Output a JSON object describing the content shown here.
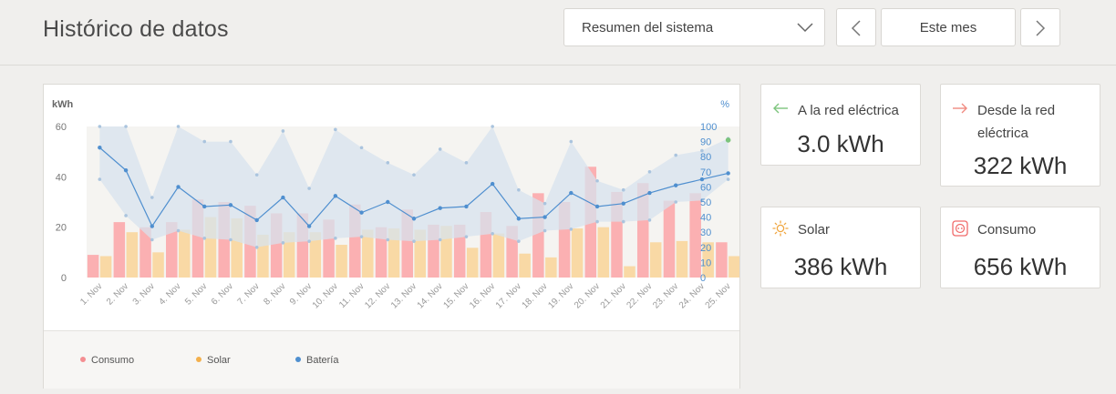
{
  "header": {
    "title": "Histórico de datos",
    "view_select": "Resumen del sistema",
    "period": "Este mes"
  },
  "stats": {
    "grid_export": {
      "label": "A la red eléctrica",
      "value": "3.0 kWh",
      "icon": "arrow-left-icon",
      "color": "#7cc47c"
    },
    "grid_import": {
      "label_line1": "Desde la red",
      "label_line2": "eléctrica",
      "value": "322 kWh",
      "icon": "arrow-right-icon",
      "color": "#f08a80"
    },
    "solar": {
      "label": "Solar",
      "value": "386 kWh",
      "icon": "sun-icon",
      "color": "#f0a640"
    },
    "consumption": {
      "label": "Consumo",
      "value": "656 kWh",
      "icon": "outlet-icon",
      "color": "#f06a6a"
    }
  },
  "legend": {
    "consumo": "Consumo",
    "solar": "Solar",
    "bateria": "Batería"
  },
  "colors": {
    "consumo": "#fbb0b2",
    "solar": "#f9d69c",
    "bateria": "#4f8fcf",
    "band": "#d7e3ee",
    "plot_bg": "#f5f4f1"
  },
  "chart_data": {
    "type": "bar",
    "ylabel": "kWh",
    "y2label": "%",
    "ylim": [
      0,
      60
    ],
    "y2lim": [
      0,
      100
    ],
    "yticks": [
      0,
      20,
      40,
      60
    ],
    "y2ticks": [
      0,
      10,
      20,
      30,
      40,
      50,
      60,
      70,
      80,
      90,
      100
    ],
    "categories": [
      "1. Nov",
      "2. Nov",
      "3. Nov",
      "4. Nov",
      "5. Nov",
      "6. Nov",
      "7. Nov",
      "8. Nov",
      "9. Nov",
      "10. Nov",
      "11. Nov",
      "12. Nov",
      "13. Nov",
      "14. Nov",
      "15. Nov",
      "16. Nov",
      "17. Nov",
      "18. Nov",
      "19. Nov",
      "20. Nov",
      "21. Nov",
      "22. Nov",
      "23. Nov",
      "24. Nov",
      "25. Nov"
    ],
    "series": [
      {
        "name": "Consumo",
        "type": "bar",
        "axis": "left",
        "values": [
          9,
          22,
          20,
          22,
          31,
          30,
          28.5,
          25.5,
          25.5,
          23,
          29,
          20,
          27,
          21,
          21,
          26,
          20.5,
          33.5,
          30,
          44,
          34,
          37.5,
          30.5,
          33.5,
          14
        ]
      },
      {
        "name": "Solar",
        "type": "bar",
        "axis": "left",
        "values": [
          8.5,
          18,
          10,
          19,
          24,
          23.5,
          17,
          18,
          18,
          13,
          19,
          19.5,
          19,
          20.5,
          11.8,
          17.5,
          9.5,
          8,
          19.5,
          20,
          4.5,
          14,
          14.5,
          14,
          8.5
        ]
      },
      {
        "name": "Batería",
        "type": "line",
        "axis": "right",
        "values": [
          86,
          71,
          34,
          60,
          47,
          48,
          38,
          53,
          34,
          54,
          43,
          50,
          39,
          46,
          47,
          62,
          39,
          40,
          56,
          47,
          49,
          56,
          61,
          65,
          69
        ],
        "max": [
          100,
          100,
          53,
          100,
          90,
          90,
          68,
          97,
          59,
          98,
          86,
          76,
          68,
          85,
          76,
          100,
          58,
          49,
          90,
          64,
          58,
          70,
          81,
          84,
          92
        ],
        "min": [
          65,
          41,
          25,
          31,
          26,
          25,
          20,
          23,
          24,
          26,
          27,
          25,
          24,
          25,
          27,
          29,
          24,
          31,
          32,
          37,
          37,
          38,
          50,
          51,
          65
        ]
      }
    ],
    "extra_points": [
      {
        "x": "25. Nov",
        "value": 91,
        "color": "#7cc47c"
      }
    ],
    "legend_position": "bottom-left"
  }
}
